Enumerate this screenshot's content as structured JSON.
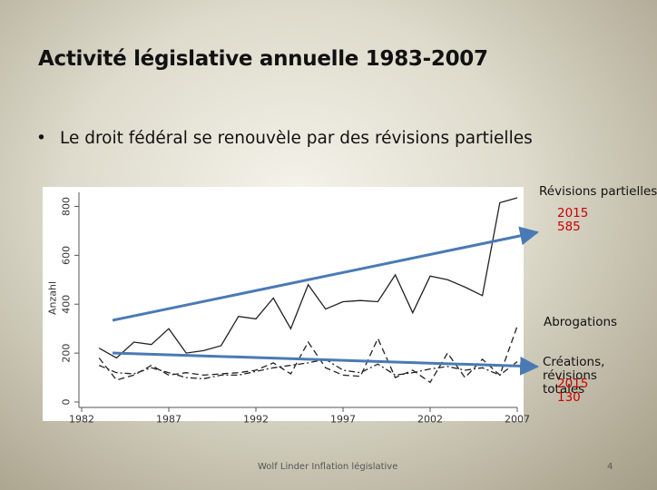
{
  "slide": {
    "title": "Activité législative annuelle 1983-2007",
    "bullet": "Le droit fédéral se renouvèle par des révisions partielles",
    "footer": "Wolf Linder Inflation législative",
    "page_number": "4"
  },
  "annotations": {
    "revisions_label": "Révisions partielles",
    "revisions_value": "2015 585",
    "abrogations_label": "Abrogations",
    "creations_label": "Créations, révisions totales",
    "creations_value": "2015 130"
  },
  "colors": {
    "series_line": "#222222",
    "trend_arrow": "#4a7ab5",
    "annotation_value": "#cc0000"
  },
  "chart_data": {
    "type": "line",
    "ylabel": "Anzahl",
    "xlabel": "",
    "xlim": [
      1982,
      2007
    ],
    "ylim": [
      0,
      850
    ],
    "x_ticks": [
      1982,
      1987,
      1992,
      1997,
      2002,
      2007
    ],
    "y_ticks": [
      0,
      200,
      400,
      600,
      800
    ],
    "grid": false,
    "x": [
      1983,
      1984,
      1985,
      1986,
      1987,
      1988,
      1989,
      1990,
      1991,
      1992,
      1993,
      1994,
      1995,
      1996,
      1997,
      1998,
      1999,
      2000,
      2001,
      2002,
      2003,
      2004,
      2005,
      2006,
      2007
    ],
    "series": [
      {
        "values": [
          220,
          180,
          245,
          235,
          300,
          200,
          210,
          230,
          350,
          340,
          425,
          300,
          480,
          380,
          410,
          415,
          410,
          520,
          365,
          515,
          500,
          470,
          435,
          815,
          835
        ],
        "style": "solid"
      },
      {
        "values": [
          180,
          90,
          110,
          150,
          110,
          120,
          110,
          115,
          120,
          130,
          160,
          115,
          245,
          140,
          110,
          105,
          260,
          100,
          130,
          80,
          200,
          100,
          175,
          110,
          310
        ],
        "style": "dashed"
      },
      {
        "values": [
          150,
          120,
          115,
          140,
          120,
          100,
          95,
          110,
          110,
          125,
          140,
          150,
          160,
          175,
          130,
          120,
          155,
          110,
          120,
          135,
          145,
          130,
          140,
          110,
          165
        ],
        "style": "dashdot"
      }
    ]
  }
}
